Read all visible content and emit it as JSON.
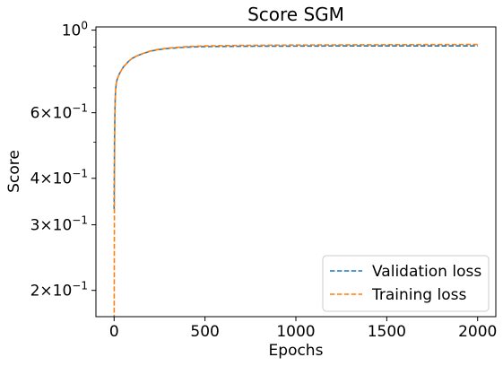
{
  "chart_data": {
    "type": "line",
    "title": "Score SGM",
    "xlabel": "Epochs",
    "ylabel": "Score",
    "xlim": [
      -100,
      2100
    ],
    "ylim": [
      0.17,
      1.02
    ],
    "yscale": "log",
    "grid": false,
    "legend_position": "bottom-right",
    "x_ticks": [
      0,
      500,
      1000,
      1500,
      2000
    ],
    "x_tick_labels": [
      "0",
      "500",
      "1000",
      "1500",
      "2000"
    ],
    "y_ticks": [
      0.2,
      0.3,
      0.4,
      0.6,
      1.0
    ],
    "y_tick_labels": [
      {
        "base": "2",
        "mult": "×10",
        "exp": "−1"
      },
      {
        "base": "3",
        "mult": "×10",
        "exp": "−1"
      },
      {
        "base": "4",
        "mult": "×10",
        "exp": "−1"
      },
      {
        "base": "6",
        "mult": "×10",
        "exp": "−1"
      },
      {
        "base": "10",
        "mult": "",
        "exp": "0"
      }
    ],
    "y_minor_ticks": [
      0.5,
      0.7,
      0.8,
      0.9
    ],
    "series": [
      {
        "name": "Validation loss",
        "color": "#1f77b4",
        "style": "dashed",
        "x": [
          0,
          2,
          5,
          8,
          12,
          16,
          20,
          25,
          30,
          40,
          50,
          60,
          80,
          100,
          130,
          160,
          200,
          250,
          300,
          400,
          500,
          700,
          1000,
          1300,
          1600,
          2000
        ],
        "y": [
          0.33,
          0.5,
          0.63,
          0.69,
          0.72,
          0.735,
          0.745,
          0.755,
          0.765,
          0.78,
          0.795,
          0.805,
          0.825,
          0.84,
          0.855,
          0.865,
          0.878,
          0.887,
          0.893,
          0.9,
          0.903,
          0.905,
          0.906,
          0.907,
          0.907,
          0.907
        ]
      },
      {
        "name": "Training loss",
        "color": "#ff7f0e",
        "style": "dashed",
        "x": [
          0,
          1,
          2,
          4,
          6,
          8,
          12,
          16,
          20,
          25,
          30,
          40,
          50,
          60,
          80,
          100,
          130,
          160,
          200,
          250,
          300,
          400,
          500,
          700,
          1000,
          1300,
          1600,
          2000
        ],
        "y": [
          0.14,
          0.22,
          0.4,
          0.57,
          0.65,
          0.69,
          0.72,
          0.735,
          0.745,
          0.755,
          0.765,
          0.78,
          0.795,
          0.805,
          0.825,
          0.84,
          0.855,
          0.866,
          0.879,
          0.889,
          0.895,
          0.903,
          0.907,
          0.91,
          0.912,
          0.913,
          0.914,
          0.915
        ]
      }
    ]
  }
}
